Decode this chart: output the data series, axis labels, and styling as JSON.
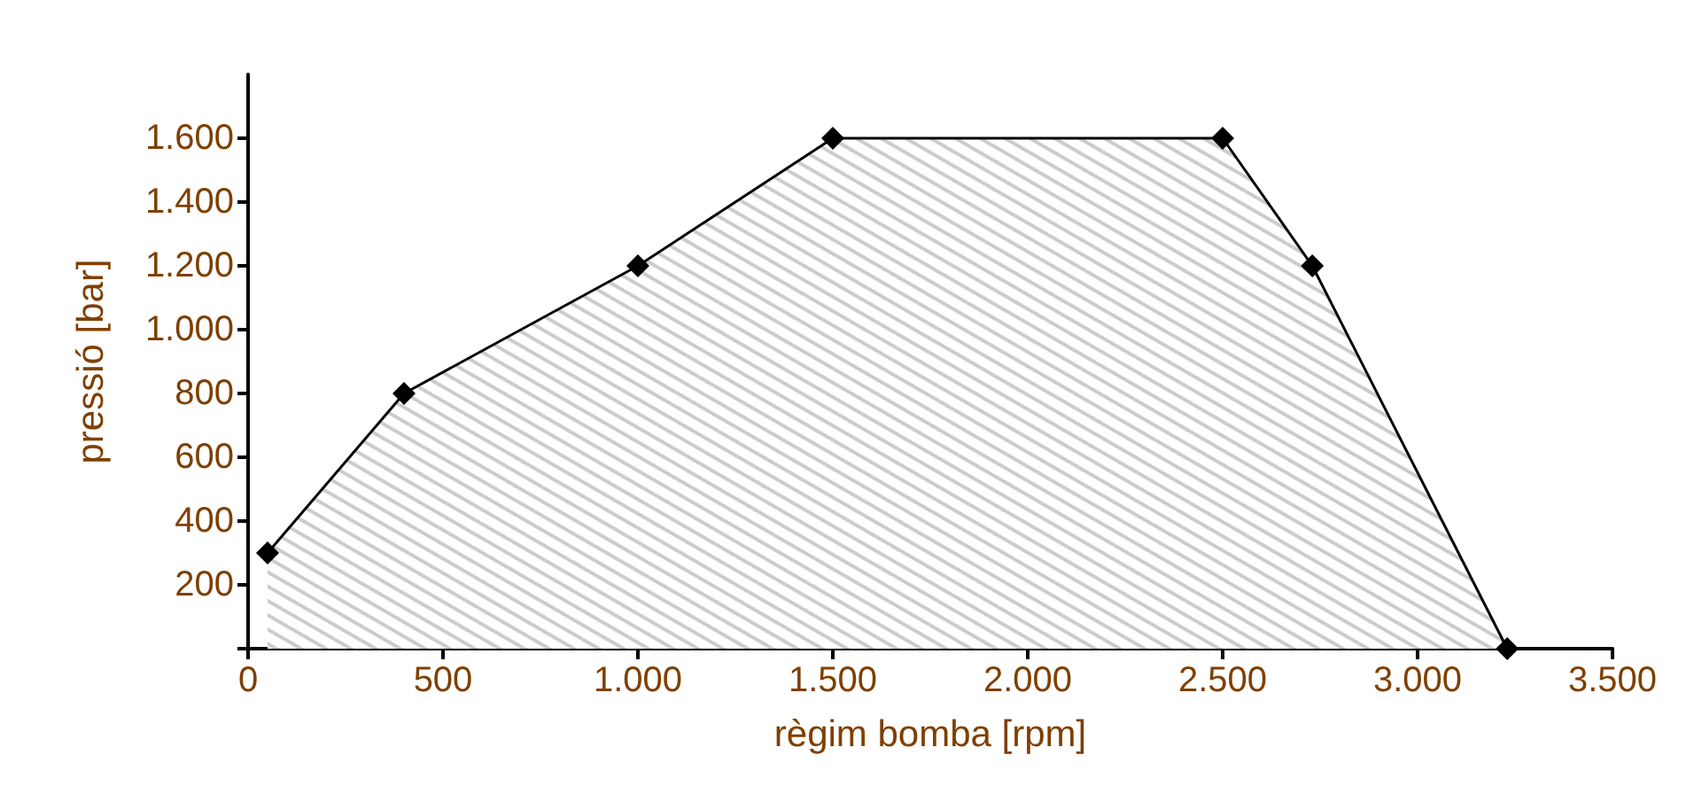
{
  "chart_data": {
    "type": "area",
    "xlabel": "règim bomba [rpm]",
    "ylabel": "pressió [bar]",
    "x": [
      50,
      400,
      1000,
      1500,
      2500,
      2730,
      3230
    ],
    "series": [
      {
        "color": "#000000",
        "values": [
          300,
          800,
          1200,
          1600,
          1600,
          1200,
          0
        ]
      }
    ],
    "marker": "diamond",
    "grid": false,
    "xlim": [
      0,
      3500
    ],
    "ylim": [
      0,
      1800
    ],
    "xticks": [
      0,
      500,
      {
        "value": 1000,
        "label": "1.000"
      },
      {
        "value": 1500,
        "label": "1.500"
      },
      {
        "value": 2000,
        "label": "2.000"
      },
      {
        "value": 2500,
        "label": "2.500"
      },
      {
        "value": 3000,
        "label": "3.000"
      },
      {
        "value": 3500,
        "label": "3.500"
      }
    ],
    "yticks": [
      {
        "value": 0,
        "label": null
      },
      200,
      400,
      600,
      800,
      {
        "value": 1000,
        "label": "1.000"
      },
      {
        "value": 1200,
        "label": "1.200"
      },
      {
        "value": 1400,
        "label": "1.400"
      },
      {
        "value": 1600,
        "label": "1.600"
      }
    ]
  }
}
